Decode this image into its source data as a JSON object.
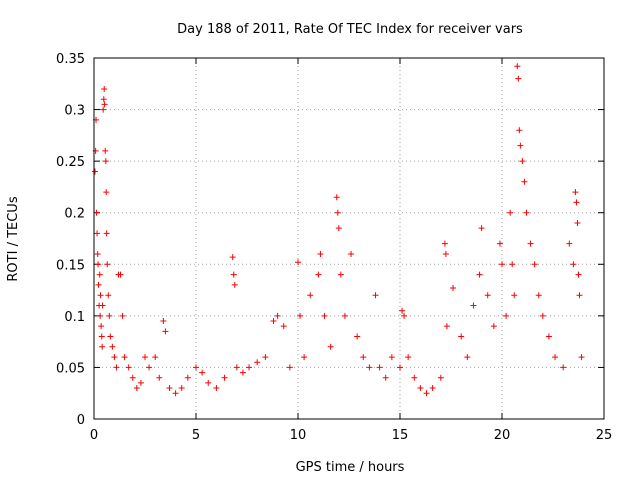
{
  "chart_data": {
    "type": "scatter",
    "title": "Day 188 of 2011, Rate Of TEC Index for receiver vars",
    "xlabel": "GPS time / hours",
    "ylabel": "ROTI / TECUs",
    "xlim": [
      0,
      25
    ],
    "ylim": [
      0,
      0.35
    ],
    "x_ticks": [
      0,
      5,
      10,
      15,
      20,
      25
    ],
    "x_tick_labels": [
      "0",
      "5",
      "10",
      "15",
      "20",
      "25"
    ],
    "y_ticks": [
      0,
      0.05,
      0.1,
      0.15,
      0.2,
      0.25,
      0.3,
      0.35
    ],
    "y_tick_labels": [
      "0",
      "0.05",
      "0.1",
      "0.15",
      "0.2",
      "0.25",
      "0.3",
      "0.35"
    ],
    "grid": true,
    "marker": "+",
    "color": "#ff0000",
    "series": [
      {
        "name": "ROTI",
        "points": [
          [
            0.05,
            0.24
          ],
          [
            0.08,
            0.26
          ],
          [
            0.1,
            0.29
          ],
          [
            0.12,
            0.2
          ],
          [
            0.15,
            0.18
          ],
          [
            0.18,
            0.16
          ],
          [
            0.2,
            0.15
          ],
          [
            0.22,
            0.13
          ],
          [
            0.25,
            0.11
          ],
          [
            0.28,
            0.14
          ],
          [
            0.3,
            0.1
          ],
          [
            0.32,
            0.12
          ],
          [
            0.35,
            0.09
          ],
          [
            0.38,
            0.08
          ],
          [
            0.4,
            0.07
          ],
          [
            0.42,
            0.11
          ],
          [
            0.45,
            0.3
          ],
          [
            0.48,
            0.31
          ],
          [
            0.5,
            0.32
          ],
          [
            0.52,
            0.305
          ],
          [
            0.55,
            0.26
          ],
          [
            0.58,
            0.25
          ],
          [
            0.6,
            0.22
          ],
          [
            0.62,
            0.18
          ],
          [
            0.65,
            0.15
          ],
          [
            0.7,
            0.12
          ],
          [
            0.75,
            0.1
          ],
          [
            0.8,
            0.08
          ],
          [
            0.9,
            0.07
          ],
          [
            1.0,
            0.06
          ],
          [
            1.1,
            0.05
          ],
          [
            1.2,
            0.14
          ],
          [
            1.3,
            0.14
          ],
          [
            1.4,
            0.1
          ],
          [
            1.5,
            0.06
          ],
          [
            1.7,
            0.05
          ],
          [
            1.9,
            0.04
          ],
          [
            2.1,
            0.03
          ],
          [
            2.3,
            0.035
          ],
          [
            2.5,
            0.06
          ],
          [
            2.7,
            0.05
          ],
          [
            3.0,
            0.06
          ],
          [
            3.2,
            0.04
          ],
          [
            3.4,
            0.095
          ],
          [
            3.5,
            0.085
          ],
          [
            3.7,
            0.03
          ],
          [
            4.0,
            0.025
          ],
          [
            4.3,
            0.03
          ],
          [
            4.6,
            0.04
          ],
          [
            5.0,
            0.05
          ],
          [
            5.3,
            0.045
          ],
          [
            5.6,
            0.035
          ],
          [
            6.0,
            0.03
          ],
          [
            6.4,
            0.04
          ],
          [
            6.8,
            0.157
          ],
          [
            6.85,
            0.14
          ],
          [
            6.9,
            0.13
          ],
          [
            7.0,
            0.05
          ],
          [
            7.3,
            0.045
          ],
          [
            7.6,
            0.05
          ],
          [
            8.0,
            0.055
          ],
          [
            8.4,
            0.06
          ],
          [
            8.8,
            0.095
          ],
          [
            9.0,
            0.1
          ],
          [
            9.3,
            0.09
          ],
          [
            9.6,
            0.05
          ],
          [
            10.0,
            0.152
          ],
          [
            10.1,
            0.1
          ],
          [
            10.3,
            0.06
          ],
          [
            10.6,
            0.12
          ],
          [
            11.0,
            0.14
          ],
          [
            11.1,
            0.16
          ],
          [
            11.3,
            0.1
          ],
          [
            11.6,
            0.07
          ],
          [
            11.9,
            0.215
          ],
          [
            11.95,
            0.2
          ],
          [
            12.0,
            0.185
          ],
          [
            12.1,
            0.14
          ],
          [
            12.3,
            0.1
          ],
          [
            12.6,
            0.16
          ],
          [
            12.9,
            0.08
          ],
          [
            13.2,
            0.06
          ],
          [
            13.5,
            0.05
          ],
          [
            13.8,
            0.12
          ],
          [
            14.0,
            0.05
          ],
          [
            14.3,
            0.04
          ],
          [
            14.6,
            0.06
          ],
          [
            15.0,
            0.05
          ],
          [
            15.1,
            0.105
          ],
          [
            15.2,
            0.1
          ],
          [
            15.4,
            0.06
          ],
          [
            15.7,
            0.04
          ],
          [
            16.0,
            0.03
          ],
          [
            16.3,
            0.025
          ],
          [
            16.6,
            0.03
          ],
          [
            17.0,
            0.04
          ],
          [
            17.2,
            0.17
          ],
          [
            17.25,
            0.16
          ],
          [
            17.3,
            0.09
          ],
          [
            17.6,
            0.127
          ],
          [
            18.0,
            0.08
          ],
          [
            18.3,
            0.06
          ],
          [
            18.6,
            0.11
          ],
          [
            18.9,
            0.14
          ],
          [
            19.0,
            0.185
          ],
          [
            19.3,
            0.12
          ],
          [
            19.6,
            0.09
          ],
          [
            19.9,
            0.17
          ],
          [
            20.0,
            0.15
          ],
          [
            20.2,
            0.1
          ],
          [
            20.4,
            0.2
          ],
          [
            20.5,
            0.15
          ],
          [
            20.6,
            0.12
          ],
          [
            20.75,
            0.342
          ],
          [
            20.8,
            0.33
          ],
          [
            20.85,
            0.28
          ],
          [
            20.9,
            0.265
          ],
          [
            21.0,
            0.25
          ],
          [
            21.1,
            0.23
          ],
          [
            21.2,
            0.2
          ],
          [
            21.4,
            0.17
          ],
          [
            21.6,
            0.15
          ],
          [
            21.8,
            0.12
          ],
          [
            22.0,
            0.1
          ],
          [
            22.3,
            0.08
          ],
          [
            22.6,
            0.06
          ],
          [
            23.0,
            0.05
          ],
          [
            23.3,
            0.17
          ],
          [
            23.5,
            0.15
          ],
          [
            23.6,
            0.22
          ],
          [
            23.65,
            0.21
          ],
          [
            23.7,
            0.19
          ],
          [
            23.75,
            0.14
          ],
          [
            23.8,
            0.12
          ],
          [
            23.9,
            0.06
          ]
        ]
      }
    ]
  }
}
